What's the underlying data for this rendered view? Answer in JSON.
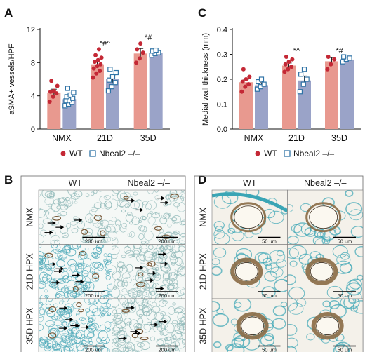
{
  "panels": {
    "a": "A",
    "b": "B",
    "c": "C",
    "d": "D"
  },
  "colors": {
    "wt_bar": "#e8998f",
    "wt_point": "#c42835",
    "ko_bar": "#9aa3c8",
    "ko_point": "#2f73a6",
    "histo_stain": "#3aa5b5"
  },
  "chart_data": [
    {
      "panel": "A",
      "type": "bar",
      "ylabel": "aSMA+ vessels/HPF",
      "categories": [
        "NMX",
        "21D",
        "35D"
      ],
      "ylim": [
        0,
        12
      ],
      "yticks": [
        0,
        4,
        8,
        12
      ],
      "series": [
        {
          "name": "WT",
          "values": [
            4.4,
            7.8,
            9.1
          ],
          "errors": [
            0.4,
            0.4,
            0.6
          ],
          "points": [
            [
              3.3,
              3.9,
              4.3,
              4.5,
              4.6,
              5.2,
              5.8
            ],
            [
              6.2,
              6.7,
              7.0,
              7.3,
              7.6,
              7.8,
              8.1,
              8.3,
              8.6,
              8.9,
              9.6
            ],
            [
              8.0,
              8.5,
              9.2,
              9.6,
              10.3
            ]
          ]
        },
        {
          "name": "Nbeal2 –/–",
          "values": [
            3.6,
            6.0,
            9.2
          ],
          "errors": [
            0.3,
            0.4,
            0.3
          ],
          "points": [
            [
              2.8,
              3.0,
              3.2,
              3.4,
              3.5,
              3.7,
              3.9,
              4.1,
              4.4,
              4.9
            ],
            [
              4.6,
              5.1,
              5.6,
              5.9,
              6.3,
              6.8,
              7.2
            ],
            [
              8.9,
              9.1,
              9.2,
              9.4,
              9.5
            ]
          ]
        }
      ],
      "annotations": [
        {
          "category": "21D",
          "text": "*#^"
        },
        {
          "category": "35D",
          "text": "*#"
        }
      ],
      "legend": "bottom"
    },
    {
      "panel": "C",
      "type": "bar",
      "ylabel": "Medial wall thickness (mm)",
      "categories": [
        "NMX",
        "21D",
        "35D"
      ],
      "ylim": [
        0,
        0.4
      ],
      "yticks": [
        0.0,
        0.1,
        0.2,
        0.3,
        0.4
      ],
      "series": [
        {
          "name": "WT",
          "values": [
            0.188,
            0.255,
            0.272
          ],
          "errors": [
            0.012,
            0.01,
            0.015
          ],
          "points": [
            [
              0.15,
              0.17,
              0.18,
              0.19,
              0.2,
              0.21,
              0.24
            ],
            [
              0.23,
              0.24,
              0.25,
              0.26,
              0.27,
              0.28,
              0.29
            ],
            [
              0.24,
              0.26,
              0.28,
              0.29
            ]
          ]
        },
        {
          "name": "Nbeal2 –/–",
          "values": [
            0.176,
            0.195,
            0.279
          ],
          "errors": [
            0.01,
            0.018,
            0.006
          ],
          "points": [
            [
              0.16,
              0.17,
              0.18,
              0.19,
              0.2
            ],
            [
              0.15,
              0.18,
              0.2,
              0.22,
              0.24
            ],
            [
              0.27,
              0.28,
              0.285,
              0.29
            ]
          ]
        }
      ],
      "annotations": [
        {
          "category": "21D",
          "text": "*^"
        },
        {
          "category": "35D",
          "text": "*#"
        }
      ],
      "legend": "bottom"
    }
  ],
  "histology": {
    "columns": [
      "WT",
      "Nbeal2 –/–"
    ],
    "rows_b": [
      "NMX",
      "21D HPX",
      "35D HPX"
    ],
    "rows_d": [
      "NMX",
      "21D HPX",
      "35D HPX"
    ],
    "scale_b": "200 um",
    "scale_d": "50 um"
  }
}
